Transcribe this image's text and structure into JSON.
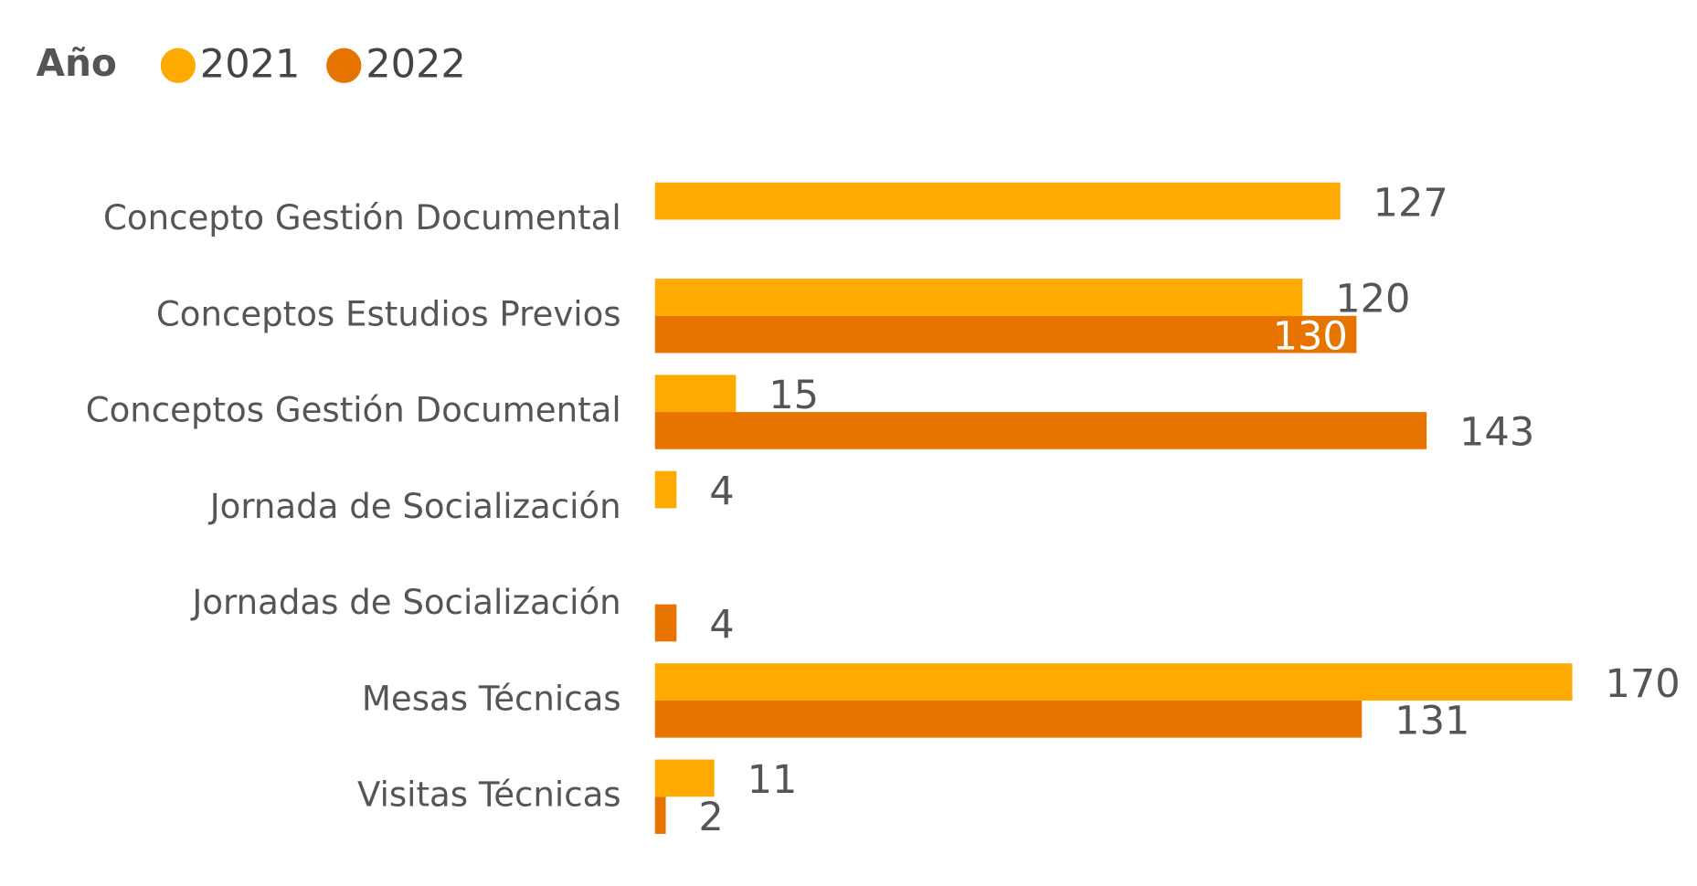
{
  "chart_data": {
    "type": "bar",
    "orientation": "horizontal",
    "legend_title": "Año",
    "categories": [
      "Concepto Gestión Documental",
      "Conceptos Estudios Previos",
      "Conceptos Gestión Documental",
      "Jornada de Socialización",
      "Jornadas de Socialización",
      "Mesas Técnicas",
      "Visitas Técnicas"
    ],
    "series": [
      {
        "name": "2021",
        "color": "#FFAA00",
        "values": [
          127,
          120,
          15,
          4,
          null,
          170,
          11
        ]
      },
      {
        "name": "2022",
        "color": "#E87400",
        "values": [
          null,
          130,
          143,
          null,
          4,
          131,
          2
        ]
      }
    ],
    "legend": "top-left"
  }
}
